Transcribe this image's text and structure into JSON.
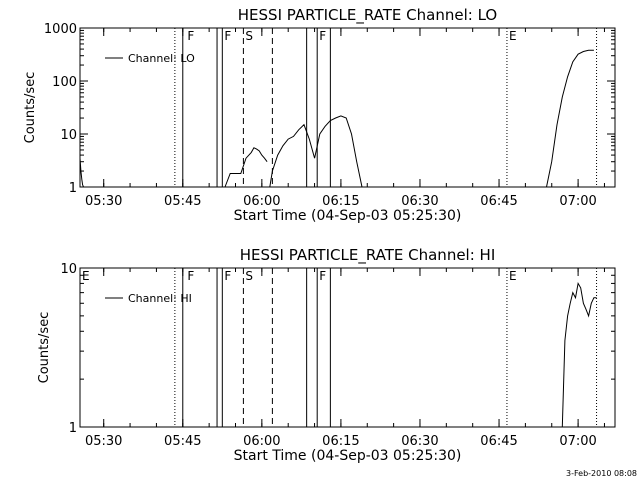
{
  "chart_data": [
    {
      "type": "line",
      "title": "HESSI PARTICLE_RATE Channel: LO",
      "xlabel": "Start Time (04-Sep-03 05:25:30)",
      "ylabel": "Counts/sec",
      "yscale": "log",
      "xlim": [
        "05:25:30",
        "07:07:00"
      ],
      "ylim": [
        1,
        1000
      ],
      "x_ticks": [
        "05:30",
        "05:45",
        "06:00",
        "06:15",
        "06:30",
        "06:45",
        "07:00"
      ],
      "y_ticks": [
        "1",
        "10",
        "100",
        "1000"
      ],
      "legend": {
        "label": "Channel: LO",
        "position": "top-left"
      },
      "series": [
        {
          "name": "Channel: LO",
          "segments": [
            {
              "x": [
                "05:25:30",
                "05:25:40",
                "05:25:50",
                "05:26:00",
                "05:26:10",
                "05:26:20"
              ],
              "y": [
                3.5,
                2.0,
                1.4,
                1.1,
                1.0,
                1.0
              ]
            },
            {
              "x": [
                "05:53:00",
                "05:54:00",
                "05:55:00",
                "05:56:00",
                "05:57:00",
                "05:58:00",
                "05:58:30",
                "05:59:00",
                "05:59:30",
                "06:00:00",
                "06:00:30",
                "06:01:00"
              ],
              "y": [
                1.0,
                1.8,
                1.8,
                1.8,
                3.5,
                4.5,
                5.5,
                5.2,
                4.8,
                4.0,
                3.5,
                3.0
              ]
            },
            {
              "x": [
                "06:01:30",
                "06:02:00",
                "06:03:00",
                "06:04:00",
                "06:05:00",
                "06:06:00",
                "06:07:00",
                "06:08:00",
                "06:09:00",
                "06:10:00",
                "06:11:00",
                "06:12:00",
                "06:13:00",
                "06:14:00",
                "06:15:00",
                "06:16:00",
                "06:17:00",
                "06:18:00",
                "06:19:00"
              ],
              "y": [
                1.0,
                2.0,
                4.0,
                6.0,
                8.0,
                9.0,
                12.0,
                15.0,
                8.0,
                3.5,
                10.0,
                14.0,
                18.0,
                20.0,
                22.0,
                20.0,
                10.0,
                3.0,
                1.0
              ]
            },
            {
              "x": [
                "06:54:00",
                "06:55:00",
                "06:56:00",
                "06:57:00",
                "06:58:00",
                "06:59:00",
                "07:00:00",
                "07:01:00",
                "07:02:00",
                "07:03:00"
              ],
              "y": [
                1.0,
                3.0,
                15.0,
                50.0,
                120.0,
                230.0,
                320.0,
                360.0,
                380.0,
                380.0
              ]
            }
          ]
        }
      ],
      "annotations": [
        {
          "label": "F",
          "x": "05:45:30"
        },
        {
          "label": "F",
          "x": "05:52:30"
        },
        {
          "label": "S",
          "x": "05:56:30"
        },
        {
          "label": "F",
          "x": "06:10:30"
        },
        {
          "label": "E",
          "x": "06:46:30"
        }
      ],
      "solid_lines": [
        "05:45:00",
        "05:51:30",
        "05:52:30",
        "06:08:30",
        "06:10:30",
        "06:13:00"
      ],
      "dashed_lines": [
        "05:56:30",
        "06:02:00"
      ],
      "dotted_lines": [
        "05:43:30",
        "06:46:30",
        "07:03:30"
      ]
    },
    {
      "type": "line",
      "title": "HESSI PARTICLE_RATE Channel: HI",
      "xlabel": "Start Time (04-Sep-03 05:25:30)",
      "ylabel": "Counts/sec",
      "yscale": "log",
      "xlim": [
        "05:25:30",
        "07:07:00"
      ],
      "ylim": [
        1,
        10
      ],
      "x_ticks": [
        "05:30",
        "05:45",
        "06:00",
        "06:15",
        "06:30",
        "06:45",
        "07:00"
      ],
      "y_ticks": [
        "1",
        "10"
      ],
      "legend": {
        "label": "Channel: HI",
        "position": "top-left"
      },
      "series": [
        {
          "name": "Channel: HI",
          "segments": [
            {
              "x": [
                "06:57:00",
                "06:57:30",
                "06:58:00",
                "06:58:30",
                "06:59:00",
                "06:59:30",
                "07:00:00",
                "07:00:30",
                "07:01:00",
                "07:01:30",
                "07:02:00",
                "07:02:30",
                "07:03:00",
                "07:03:30"
              ],
              "y": [
                1.0,
                3.5,
                5.0,
                6.0,
                7.0,
                6.5,
                8.0,
                7.5,
                6.0,
                5.5,
                5.0,
                6.0,
                6.5,
                6.5
              ]
            }
          ]
        }
      ],
      "annotations": [
        {
          "label": "E",
          "x": "05:25:30"
        },
        {
          "label": "F",
          "x": "05:45:30"
        },
        {
          "label": "F",
          "x": "05:52:30"
        },
        {
          "label": "S",
          "x": "05:56:30"
        },
        {
          "label": "F",
          "x": "06:10:30"
        },
        {
          "label": "E",
          "x": "06:46:30"
        }
      ],
      "solid_lines": [
        "05:45:00",
        "05:51:30",
        "05:52:30",
        "06:08:30",
        "06:10:30",
        "06:13:00"
      ],
      "dashed_lines": [
        "05:56:30",
        "06:02:00"
      ],
      "dotted_lines": [
        "05:43:30",
        "06:46:30",
        "07:03:30"
      ]
    }
  ],
  "footer": {
    "timestamp": "3-Feb-2010 08:08"
  }
}
